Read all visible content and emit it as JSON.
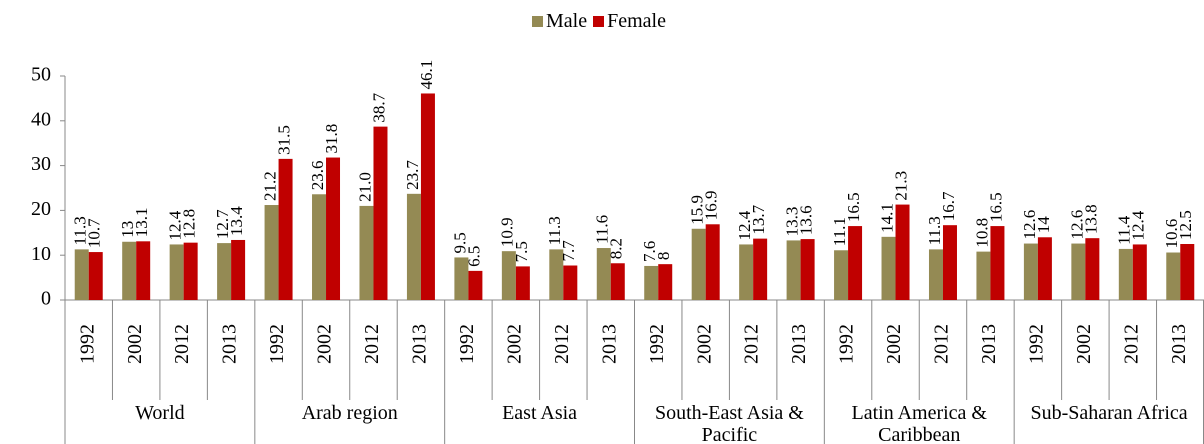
{
  "chart_data": {
    "type": "bar",
    "categories": [
      "1992",
      "2002",
      "2012",
      "2013",
      "1992",
      "2002",
      "2012",
      "2013",
      "1992",
      "2002",
      "2012",
      "2013",
      "1992",
      "2002",
      "2012",
      "2013",
      "1992",
      "2002",
      "2012",
      "2013",
      "1992",
      "2002",
      "2012",
      "2013"
    ],
    "groups": [
      "World",
      "Arab region",
      "East Asia",
      "South-East Asia & Pacific",
      "Latin America & Caribbean",
      "Sub-Saharan Africa"
    ],
    "series": [
      {
        "name": "Male",
        "color": "#948a54",
        "values": [
          11.3,
          13,
          12.4,
          12.7,
          21.2,
          23.6,
          21.0,
          23.7,
          9.5,
          10.9,
          11.3,
          11.6,
          7.6,
          15.9,
          12.4,
          13.3,
          11.1,
          14.1,
          11.3,
          10.8,
          12.6,
          12.6,
          11.4,
          10.6
        ],
        "value_labels": [
          "11.3",
          "13",
          "12.4",
          "12.7",
          "21.2",
          "23.6",
          "21.0",
          "23.7",
          "9.5",
          "10.9",
          "11.3",
          "11.6",
          "7.6",
          "15.9",
          "12.4",
          "13.3",
          "11.1",
          "14.1",
          "11.3",
          "10.8",
          "12.6",
          "12.6",
          "11.4",
          "10.6"
        ]
      },
      {
        "name": "Female",
        "color": "#c00000",
        "values": [
          10.7,
          13.1,
          12.8,
          13.4,
          31.5,
          31.8,
          38.7,
          46.1,
          6.5,
          7.5,
          7.7,
          8.2,
          8,
          16.9,
          13.7,
          13.6,
          16.5,
          21.3,
          16.7,
          16.5,
          14,
          13.8,
          12.4,
          12.5
        ]
      }
    ],
    "ylim": [
      0,
      50
    ],
    "yticks": [
      0,
      10,
      20,
      30,
      40,
      50
    ],
    "legend": "top"
  }
}
